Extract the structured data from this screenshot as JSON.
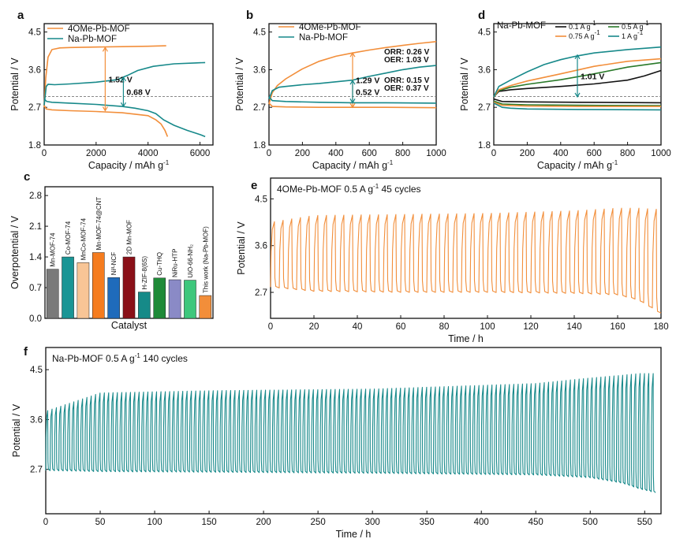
{
  "colors": {
    "orange": "#f28e3a",
    "teal": "#17898a",
    "black": "#111111",
    "green": "#2a7a2a",
    "grid": "#888888",
    "red": "#e3262c"
  },
  "panel_labels": [
    "a",
    "b",
    "c",
    "d",
    "e",
    "f"
  ],
  "chart_data": [
    {
      "id": "a",
      "type": "line",
      "xlabel": "Capacity / mAh g",
      "xlabel_sup": "-1",
      "ylabel": "Potential / V",
      "xlim": [
        0,
        6500
      ],
      "ylim": [
        1.8,
        4.7
      ],
      "xticks": [
        0,
        2000,
        4000,
        6000
      ],
      "yticks": [
        1.8,
        2.7,
        3.6,
        4.5
      ],
      "ref_line": 2.96,
      "legend": [
        "4OMe-Pb-MOF",
        "Na-Pb-MOF"
      ],
      "series": [
        {
          "name": "4OMe-Pb-MOF charge",
          "color": "orange",
          "x": [
            0,
            60,
            150,
            300,
            600,
            1000,
            2000,
            3000,
            4000,
            4700
          ],
          "y": [
            2.7,
            3.4,
            3.9,
            4.08,
            4.12,
            4.13,
            4.14,
            4.15,
            4.16,
            4.17
          ]
        },
        {
          "name": "4OMe-Pb-MOF discharge",
          "color": "orange",
          "x": [
            0,
            80,
            300,
            1000,
            2000,
            3000,
            4000,
            4300,
            4500,
            4650,
            4750
          ],
          "y": [
            2.75,
            2.66,
            2.64,
            2.62,
            2.6,
            2.57,
            2.5,
            2.4,
            2.3,
            2.15,
            2.0
          ]
        },
        {
          "name": "Na-Pb-MOF charge",
          "color": "teal",
          "x": [
            0,
            80,
            150,
            400,
            1000,
            2000,
            2800,
            3200,
            3600,
            4200,
            5000,
            5800,
            6200
          ],
          "y": [
            2.75,
            3.2,
            3.25,
            3.24,
            3.26,
            3.3,
            3.36,
            3.46,
            3.58,
            3.68,
            3.74,
            3.76,
            3.77
          ]
        },
        {
          "name": "Na-Pb-MOF discharge",
          "color": "teal",
          "x": [
            0,
            100,
            300,
            1000,
            2000,
            3000,
            3500,
            4000,
            4300,
            4600,
            5000,
            5500,
            6000,
            6200
          ],
          "y": [
            2.9,
            2.84,
            2.82,
            2.8,
            2.77,
            2.72,
            2.68,
            2.62,
            2.55,
            2.4,
            2.27,
            2.15,
            2.05,
            2.0
          ]
        }
      ],
      "annotations": [
        {
          "text": "1.52 V",
          "color": "orange",
          "x": 2350,
          "y_from": 2.62,
          "y_to": 4.13
        },
        {
          "text": "0.68 V",
          "color": "teal",
          "x": 3050,
          "y_from": 2.72,
          "y_to": 3.42
        }
      ]
    },
    {
      "id": "b",
      "type": "line",
      "xlabel": "Capacity / mAh g",
      "xlabel_sup": "-1",
      "ylabel": "Potential / V",
      "xlim": [
        0,
        1000
      ],
      "ylim": [
        1.8,
        4.7
      ],
      "xticks": [
        0,
        200,
        400,
        600,
        800,
        1000
      ],
      "yticks": [
        1.8,
        2.7,
        3.6,
        4.5
      ],
      "ref_line": 2.96,
      "legend": [
        "4OMe-Pb-MOF",
        "Na-Pb-MOF"
      ],
      "series": [
        {
          "name": "4OMe-Pb-MOF charge",
          "color": "orange",
          "x": [
            0,
            20,
            50,
            100,
            200,
            300,
            400,
            500,
            600,
            700,
            800,
            900,
            1000
          ],
          "y": [
            2.78,
            3.05,
            3.22,
            3.38,
            3.62,
            3.8,
            3.92,
            4.0,
            4.07,
            4.13,
            4.18,
            4.23,
            4.27
          ]
        },
        {
          "name": "4OMe-Pb-MOF discharge",
          "color": "orange",
          "x": [
            0,
            20,
            100,
            300,
            500,
            700,
            1000
          ],
          "y": [
            2.8,
            2.72,
            2.71,
            2.7,
            2.7,
            2.7,
            2.69
          ]
        },
        {
          "name": "Na-Pb-MOF charge",
          "color": "teal",
          "x": [
            0,
            20,
            60,
            100,
            200,
            300,
            400,
            500,
            600,
            700,
            800,
            900,
            1000
          ],
          "y": [
            2.9,
            3.1,
            3.18,
            3.2,
            3.24,
            3.27,
            3.31,
            3.35,
            3.44,
            3.52,
            3.6,
            3.66,
            3.7
          ]
        },
        {
          "name": "Na-Pb-MOF discharge",
          "color": "teal",
          "x": [
            0,
            20,
            100,
            300,
            500,
            700,
            1000
          ],
          "y": [
            2.95,
            2.86,
            2.84,
            2.82,
            2.81,
            2.81,
            2.8
          ]
        }
      ],
      "annotations": [
        {
          "text": "1.29 V",
          "color": "orange",
          "x": 500,
          "y_from": 2.7,
          "y_to": 4.0
        },
        {
          "text": "0.52 V",
          "color": "teal",
          "x": 500,
          "y_from": 2.81,
          "y_to": 3.34
        }
      ],
      "notes": [
        {
          "text": "ORR: 0.26 V",
          "color": "orange"
        },
        {
          "text": "OER: 1.03 V",
          "color": "orange"
        },
        {
          "text": "ORR: 0.15 V",
          "color": "teal"
        },
        {
          "text": "OER: 0.37 V",
          "color": "teal"
        }
      ]
    },
    {
      "id": "d",
      "type": "line",
      "title": "Na-Pb-MOF",
      "xlabel": "Capacity / mAh g",
      "xlabel_sup": "-1",
      "ylabel": "Potential / V",
      "xlim": [
        0,
        1000
      ],
      "ylim": [
        1.8,
        4.7
      ],
      "xticks": [
        0,
        200,
        400,
        600,
        800,
        1000
      ],
      "yticks": [
        1.8,
        2.7,
        3.6,
        4.5
      ],
      "ref_line": 2.96,
      "legend": [
        "0.1 A g",
        "0.5 A g",
        "0.75 A g",
        "1 A g"
      ],
      "legend_sup": "-1",
      "series": [
        {
          "name": "0.1 A g-1 charge",
          "color": "black",
          "x": [
            0,
            30,
            100,
            200,
            400,
            600,
            800,
            900,
            1000
          ],
          "y": [
            2.95,
            3.08,
            3.12,
            3.15,
            3.2,
            3.26,
            3.35,
            3.45,
            3.58
          ]
        },
        {
          "name": "0.1 A g-1 discharge",
          "color": "black",
          "x": [
            0,
            50,
            200,
            500,
            1000
          ],
          "y": [
            2.9,
            2.84,
            2.83,
            2.82,
            2.81
          ]
        },
        {
          "name": "0.5 A g-1 charge",
          "color": "green",
          "x": [
            0,
            30,
            100,
            200,
            400,
            600,
            800,
            1000
          ],
          "y": [
            2.95,
            3.1,
            3.18,
            3.25,
            3.36,
            3.5,
            3.66,
            3.77
          ]
        },
        {
          "name": "0.5 A g-1 discharge",
          "color": "green",
          "x": [
            0,
            50,
            200,
            500,
            1000
          ],
          "y": [
            2.85,
            2.78,
            2.76,
            2.75,
            2.74
          ]
        },
        {
          "name": "0.75 A g-1 charge",
          "color": "orange",
          "x": [
            0,
            30,
            100,
            200,
            400,
            600,
            800,
            1000
          ],
          "y": [
            2.95,
            3.12,
            3.22,
            3.33,
            3.5,
            3.68,
            3.8,
            3.86
          ]
        },
        {
          "name": "0.75 A g-1 discharge",
          "color": "orange",
          "x": [
            0,
            50,
            200,
            500,
            1000
          ],
          "y": [
            2.82,
            2.75,
            2.73,
            2.72,
            2.72
          ]
        },
        {
          "name": "1 A g-1 charge",
          "color": "teal",
          "x": [
            0,
            30,
            100,
            200,
            300,
            400,
            500,
            600,
            800,
            1000
          ],
          "y": [
            2.95,
            3.2,
            3.35,
            3.55,
            3.72,
            3.84,
            3.93,
            4.0,
            4.08,
            4.14
          ]
        },
        {
          "name": "1 A g-1 discharge",
          "color": "teal",
          "x": [
            0,
            50,
            100,
            200,
            500,
            1000
          ],
          "y": [
            2.8,
            2.7,
            2.68,
            2.66,
            2.65,
            2.64
          ]
        }
      ],
      "annotations": [
        {
          "text": "1.01 V",
          "color": "teal",
          "x": 500,
          "y_from": 2.95,
          "y_to": 3.95
        }
      ]
    },
    {
      "id": "c",
      "type": "bar",
      "xlabel": "Catalyst",
      "ylabel": "Overpotential / V",
      "ylim": [
        0,
        3.0
      ],
      "yticks": [
        0.0,
        0.7,
        1.4,
        2.1,
        2.8
      ],
      "categories": [
        "Mn-MOF-74",
        "Co-MOF-74",
        "MnCo-MOF-74",
        "Mn-MOF-74@CNT",
        "Niᴵᴵ-NCF",
        "2D Mn-MOF",
        "H-ZIF-8(6S)",
        "Cu-THQ",
        "NiRu-HTP",
        "UiO-66-NH₂",
        "This work (Na-Pb-MOF)"
      ],
      "values": [
        1.12,
        1.4,
        1.27,
        1.5,
        0.93,
        1.4,
        0.6,
        0.92,
        0.88,
        0.87,
        0.52
      ],
      "bar_colors": [
        "#7a7a7a",
        "#1a9595",
        "#f8c596",
        "#f57c1f",
        "#1f6bbb",
        "#8a1018",
        "#168a88",
        "#1f8a38",
        "#8a8ac6",
        "#3ec77c",
        "#f28e3a"
      ],
      "highlight_index": 10
    },
    {
      "id": "e",
      "type": "line",
      "title": "4OMe-Pb-MOF 0.5 A g",
      "title_sup": "-1",
      "title_suffix": "45 cycles",
      "xlabel": "Time / h",
      "ylabel": "Potential / V",
      "xlim": [
        0,
        180
      ],
      "ylim": [
        2.2,
        4.9
      ],
      "xticks": [
        0,
        20,
        40,
        60,
        80,
        100,
        120,
        140,
        160,
        180
      ],
      "yticks": [
        2.7,
        3.6,
        4.5
      ],
      "cycles": 45,
      "cycle_hours": 4,
      "color": "orange",
      "envelope_time_h": [
        0,
        20,
        60,
        100,
        140,
        160,
        170,
        178,
        180
      ],
      "envelope_charge_V": [
        4.05,
        4.18,
        4.2,
        4.22,
        4.27,
        4.32,
        4.32,
        4.3,
        4.25
      ],
      "envelope_discharge_V": [
        2.8,
        2.72,
        2.7,
        2.7,
        2.68,
        2.65,
        2.55,
        2.35,
        2.3
      ]
    },
    {
      "id": "f",
      "type": "line",
      "title": "Na-Pb-MOF 0.5 A g",
      "title_sup": "-1",
      "title_suffix": "140 cycles",
      "xlabel": "Time / h",
      "ylabel": "Potential / V",
      "xlim": [
        0,
        565
      ],
      "ylim": [
        1.9,
        4.9
      ],
      "xticks": [
        0,
        50,
        100,
        150,
        200,
        250,
        300,
        350,
        400,
        450,
        500,
        550
      ],
      "yticks": [
        2.7,
        3.6,
        4.5
      ],
      "cycles": 140,
      "cycle_hours": 4,
      "color": "teal",
      "envelope_time_h": [
        0,
        50,
        150,
        300,
        450,
        500,
        530,
        545,
        560
      ],
      "envelope_charge_V": [
        3.75,
        4.08,
        4.12,
        4.15,
        4.25,
        4.35,
        4.4,
        4.43,
        4.43
      ],
      "envelope_discharge_V": [
        2.68,
        2.66,
        2.65,
        2.63,
        2.6,
        2.55,
        2.45,
        2.35,
        2.28
      ]
    }
  ]
}
